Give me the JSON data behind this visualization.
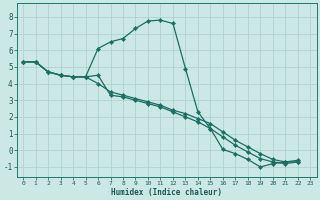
{
  "xlabel": "Humidex (Indice chaleur)",
  "bg_color": "#cce8e4",
  "line_color": "#1a6e62",
  "grid_color": "#aacfcb",
  "xlim": [
    -0.5,
    23.5
  ],
  "ylim": [
    -1.6,
    8.8
  ],
  "xticks": [
    0,
    1,
    2,
    3,
    4,
    5,
    6,
    7,
    8,
    9,
    10,
    11,
    12,
    13,
    14,
    15,
    16,
    17,
    18,
    19,
    20,
    21,
    22,
    23
  ],
  "yticks": [
    -1,
    0,
    1,
    2,
    3,
    4,
    5,
    6,
    7,
    8
  ],
  "series": [
    {
      "x": [
        0,
        1,
        2,
        3,
        4,
        5,
        6,
        7,
        8,
        9,
        10,
        11,
        12,
        13,
        14,
        15,
        16,
        17,
        18,
        19,
        20,
        21,
        22
      ],
      "y": [
        5.3,
        5.3,
        4.7,
        4.5,
        4.4,
        4.4,
        6.1,
        6.5,
        6.7,
        7.3,
        7.75,
        7.8,
        7.6,
        4.9,
        2.3,
        1.3,
        0.05,
        -0.2,
        -0.55,
        -1.0,
        -0.8,
        -0.7,
        -0.6
      ]
    },
    {
      "x": [
        0,
        1,
        2,
        3,
        4,
        5,
        6,
        7,
        8,
        9,
        10,
        11,
        12,
        13,
        14,
        15,
        16,
        17,
        18,
        19,
        20,
        21,
        22
      ],
      "y": [
        5.3,
        5.3,
        4.7,
        4.5,
        4.4,
        4.4,
        4.0,
        3.5,
        3.3,
        3.1,
        2.9,
        2.7,
        2.4,
        2.2,
        1.9,
        1.6,
        1.1,
        0.6,
        0.2,
        -0.2,
        -0.55,
        -0.7,
        -0.7
      ]
    },
    {
      "x": [
        0,
        1,
        2,
        3,
        4,
        5,
        6,
        7,
        8,
        9,
        10,
        11,
        12,
        13,
        14,
        15,
        16,
        17,
        18,
        19,
        20,
        21,
        22
      ],
      "y": [
        5.3,
        5.3,
        4.7,
        4.5,
        4.4,
        4.4,
        4.5,
        3.3,
        3.2,
        3.0,
        2.8,
        2.6,
        2.3,
        2.0,
        1.7,
        1.3,
        0.8,
        0.3,
        -0.1,
        -0.5,
        -0.7,
        -0.8,
        -0.7
      ]
    }
  ]
}
